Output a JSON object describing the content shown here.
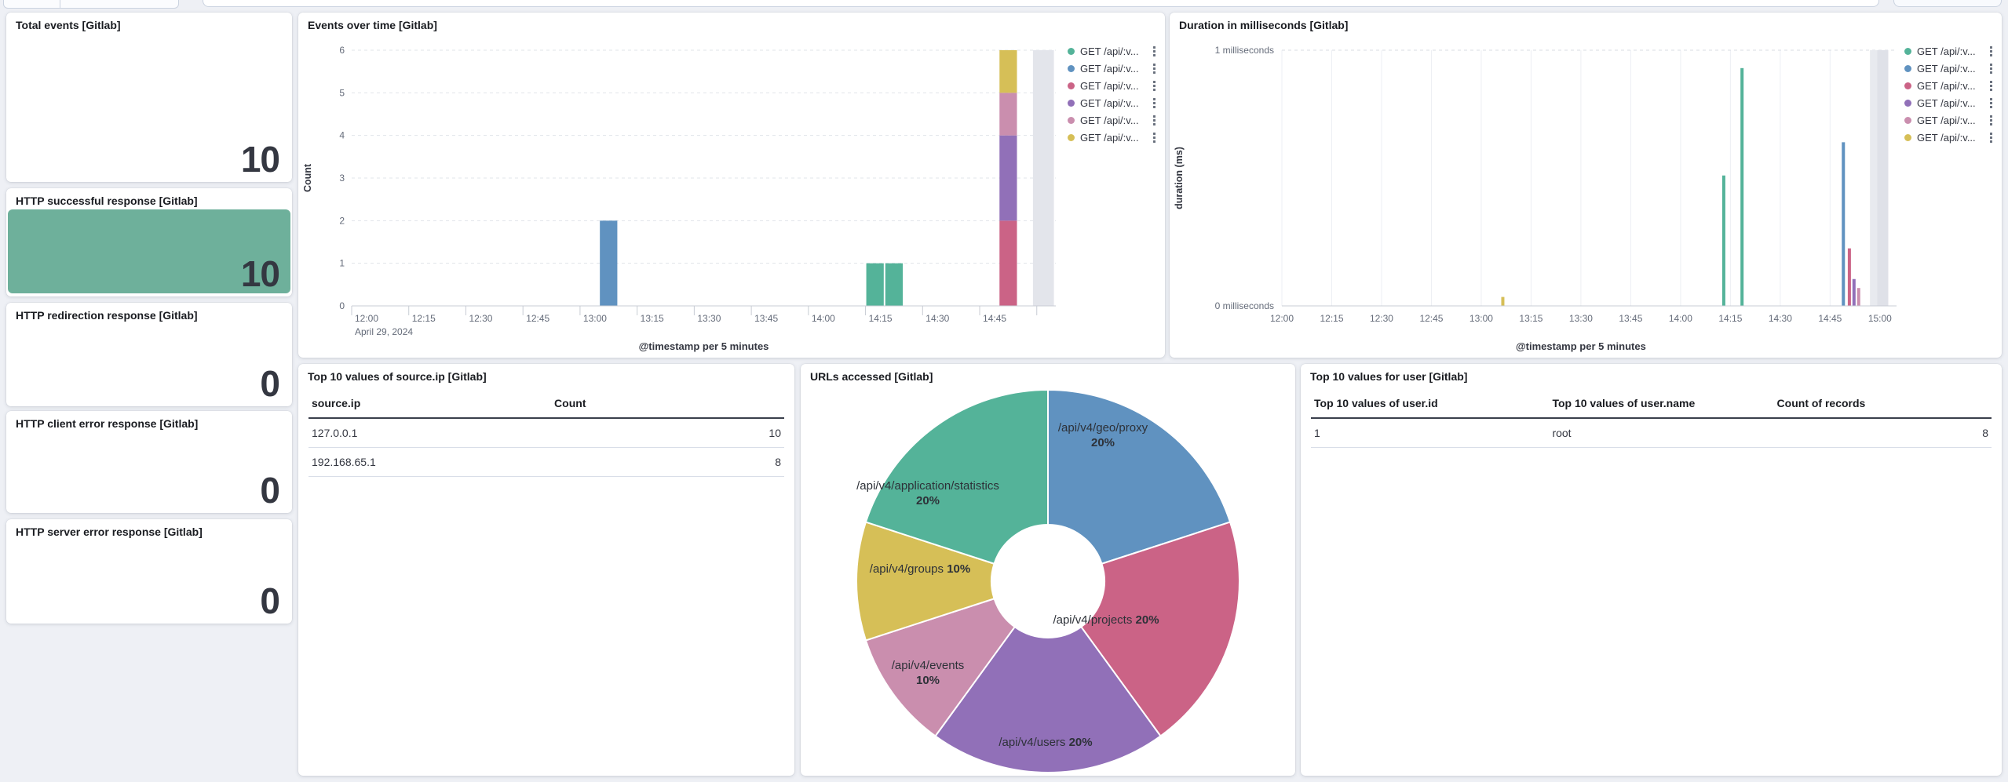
{
  "page": {
    "background": "#EEF0F5"
  },
  "palette": {
    "green": "#54B399",
    "blue": "#6092C0",
    "pink": "#CB6386",
    "purple": "#9170B8",
    "light_pink": "#CA8EAE",
    "yellow": "#D6BF57",
    "band_grey": "#E3E5EB",
    "metric_green_bg": "#6EB09B"
  },
  "stat_panels": [
    {
      "title": "Total events [Gitlab]",
      "value": "10"
    },
    {
      "title": "HTTP successful response [Gitlab]",
      "value": "10",
      "highlight": true
    },
    {
      "title": "HTTP redirection response [Gitlab]",
      "value": "0"
    },
    {
      "title": "HTTP client error response [Gitlab]",
      "value": "0"
    },
    {
      "title": "HTTP server error response [Gitlab]",
      "value": "0"
    }
  ],
  "events_panel": {
    "title": "Events over time [Gitlab]",
    "legend": [
      {
        "label": "GET /api/:v...",
        "color": "#54B399"
      },
      {
        "label": "GET /api/:v...",
        "color": "#6092C0"
      },
      {
        "label": "GET /api/:v...",
        "color": "#CB6386"
      },
      {
        "label": "GET /api/:v...",
        "color": "#9170B8"
      },
      {
        "label": "GET /api/:v...",
        "color": "#CA8EAE"
      },
      {
        "label": "GET /api/:v...",
        "color": "#D6BF57"
      }
    ]
  },
  "duration_panel": {
    "title": "Duration in milliseconds [Gitlab]",
    "legend": [
      {
        "label": "GET /api/:v...",
        "color": "#54B399"
      },
      {
        "label": "GET /api/:v...",
        "color": "#6092C0"
      },
      {
        "label": "GET /api/:v...",
        "color": "#CB6386"
      },
      {
        "label": "GET /api/:v...",
        "color": "#9170B8"
      },
      {
        "label": "GET /api/:v...",
        "color": "#CA8EAE"
      },
      {
        "label": "GET /api/:v...",
        "color": "#D6BF57"
      }
    ]
  },
  "source_ip_panel": {
    "title": "Top 10 values of source.ip [Gitlab]",
    "columns": [
      "source.ip",
      "Count"
    ],
    "rows": [
      [
        "127.0.0.1",
        "10"
      ],
      [
        "192.168.65.1",
        "8"
      ]
    ]
  },
  "urls_panel": {
    "title": "URLs accessed [Gitlab]"
  },
  "user_panel": {
    "title": "Top 10 values for user [Gitlab]",
    "columns": [
      "Top 10 values of user.id",
      "Top 10 values of user.name",
      "Count of records"
    ],
    "rows": [
      [
        "1",
        "root",
        "8"
      ]
    ]
  },
  "chart_data": [
    {
      "id": "events_over_time",
      "type": "bar",
      "stacked": true,
      "title": "Events over time [Gitlab]",
      "xlabel": "@timestamp per 5 minutes",
      "ylabel": "Count",
      "ylim": [
        0,
        6
      ],
      "yticks": [
        0,
        1,
        2,
        3,
        4,
        5,
        6
      ],
      "x_domain_minutes": 185,
      "x_start": "12:00",
      "x_date_label": "April 29, 2024",
      "x_tick_labels": [
        "12:00",
        "12:15",
        "12:30",
        "12:45",
        "13:00",
        "13:15",
        "13:30",
        "13:45",
        "14:00",
        "14:15",
        "14:30",
        "14:45"
      ],
      "bars": [
        {
          "time": "13:05",
          "minutes": 65,
          "segments": [
            {
              "color": "#6092C0",
              "value": 2
            }
          ]
        },
        {
          "time": "14:15",
          "minutes": 135,
          "segments": [
            {
              "color": "#54B399",
              "value": 1
            }
          ]
        },
        {
          "time": "14:20",
          "minutes": 140,
          "segments": [
            {
              "color": "#54B399",
              "value": 1
            }
          ]
        },
        {
          "time": "14:50",
          "minutes": 170,
          "segments": [
            {
              "color": "#CB6386",
              "value": 2
            },
            {
              "color": "#9170B8",
              "value": 2
            },
            {
              "color": "#CA8EAE",
              "value": 1
            },
            {
              "color": "#D6BF57",
              "value": 1
            }
          ]
        }
      ],
      "current_bucket_band": {
        "from_minutes": 179,
        "to_minutes": 184.5,
        "color": "#E3E5EB"
      }
    },
    {
      "id": "duration_ms",
      "type": "bar",
      "title": "Duration in milliseconds [Gitlab]",
      "xlabel": "@timestamp per 5 minutes",
      "ylabel": "duration (ms)",
      "ylim": [
        0,
        1
      ],
      "ytick_labels": [
        "0 milliseconds",
        "1 milliseconds"
      ],
      "x_domain_minutes": 185,
      "x_start": "12:00",
      "x_tick_labels": [
        "12:00",
        "12:15",
        "12:30",
        "12:45",
        "13:00",
        "13:15",
        "13:30",
        "13:45",
        "14:00",
        "14:15",
        "14:30",
        "14:45",
        "15:00"
      ],
      "bars": [
        {
          "time": "13:07",
          "minutes": 66.5,
          "color": "#D6BF57",
          "value": 0.035
        },
        {
          "time": "14:13",
          "minutes": 133,
          "color": "#54B399",
          "value": 0.51
        },
        {
          "time": "14:18",
          "minutes": 138.5,
          "color": "#54B399",
          "value": 0.93
        },
        {
          "time": "14:49",
          "minutes": 169,
          "color": "#6092C0",
          "value": 0.64
        },
        {
          "time": "14:51",
          "minutes": 170.8,
          "color": "#CB6386",
          "value": 0.225
        },
        {
          "time": "14:52",
          "minutes": 172.2,
          "color": "#9170B8",
          "value": 0.105
        },
        {
          "time": "14:53",
          "minutes": 173.6,
          "color": "#CA8EAE",
          "value": 0.07
        }
      ],
      "current_bucket_band": {
        "from_minutes": 177,
        "to_minutes": 182.5,
        "color": "#E3E5EB"
      }
    },
    {
      "id": "urls_accessed",
      "type": "pie",
      "title": "URLs accessed [Gitlab]",
      "donut": true,
      "slices": [
        {
          "label": "/api/v4/geo/proxy",
          "pct": 20,
          "color": "#6092C0",
          "label_lines": [
            "/api/v4/geo/proxy",
            "20%"
          ]
        },
        {
          "label": "/api/v4/projects",
          "pct": 20,
          "color": "#CB6386",
          "label_lines": [
            "/api/v4/projects 20%"
          ]
        },
        {
          "label": "/api/v4/users",
          "pct": 20,
          "color": "#9170B8",
          "label_lines": [
            "/api/v4/users 20%"
          ]
        },
        {
          "label": "/api/v4/events",
          "pct": 10,
          "color": "#CA8EAE",
          "label_lines": [
            "/api/v4/events",
            "10%"
          ]
        },
        {
          "label": "/api/v4/groups",
          "pct": 10,
          "color": "#D6BF57",
          "label_lines": [
            "/api/v4/groups 10%"
          ]
        },
        {
          "label": "/api/v4/application/statistics",
          "pct": 20,
          "color": "#54B399",
          "label_lines": [
            "/api/v4/application/statistics",
            "20%"
          ]
        }
      ]
    }
  ]
}
